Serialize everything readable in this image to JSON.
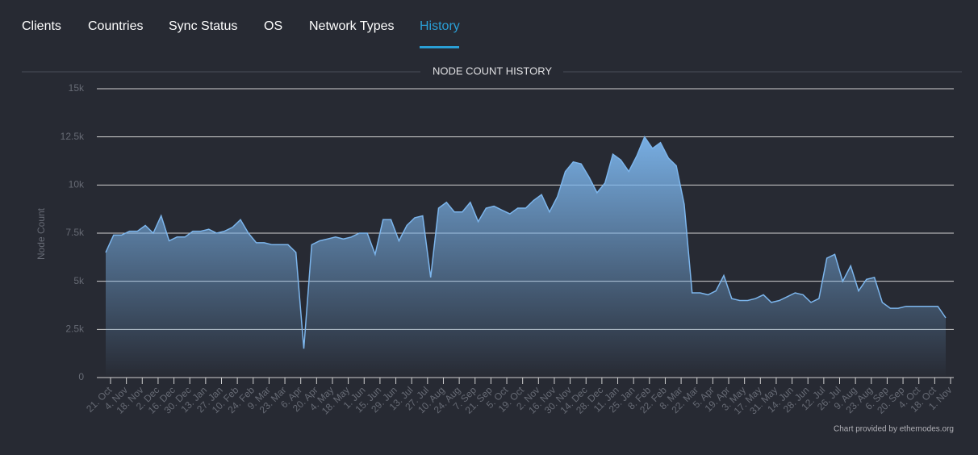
{
  "tabs": [
    "Clients",
    "Countries",
    "Sync Status",
    "OS",
    "Network Types",
    "History"
  ],
  "chart_data": {
    "type": "area",
    "title": "NODE COUNT HISTORY",
    "y_label": "Node Count",
    "credit": "Chart provided by ethernodes.org",
    "color": "#7cb5ec",
    "grid": true,
    "ylim": [
      0,
      15000
    ],
    "yticks": [
      0,
      {
        "value": 2500,
        "label": "2.5k"
      },
      {
        "value": 5000,
        "label": "5k"
      },
      {
        "value": 7500,
        "label": "7.5k"
      },
      {
        "value": 10000,
        "label": "10k"
      },
      {
        "value": 12500,
        "label": "12.5k"
      },
      {
        "value": 15000,
        "label": "15k"
      }
    ],
    "categories": [
      "21. Oct",
      null,
      "4. Nov",
      null,
      "18. Nov",
      null,
      "2. Dec",
      null,
      "16. Dec",
      null,
      "30. Dec",
      null,
      "13. Jan",
      null,
      "27. Jan",
      null,
      "10. Feb",
      null,
      "24. Feb",
      null,
      "9. Mar",
      null,
      "23. Mar",
      null,
      "6. Apr",
      null,
      "20. Apr",
      null,
      "4. May",
      null,
      "18. May",
      null,
      "1. Jun",
      null,
      "15. Jun",
      null,
      "29. Jun",
      null,
      "13. Jul",
      null,
      "27. Jul",
      null,
      "10. Aug",
      null,
      "24. Aug",
      null,
      "7. Sep",
      null,
      "21. Sep",
      null,
      "5. Oct",
      null,
      "19. Oct",
      null,
      "2. Nov",
      null,
      "16. Nov",
      null,
      "30. Nov",
      null,
      "14. Dec",
      null,
      "28. Dec",
      null,
      "11. Jan",
      null,
      "25. Jan",
      null,
      "8. Feb",
      null,
      "22. Feb",
      null,
      "8. Mar",
      null,
      "22. Mar",
      null,
      "5. Apr",
      null,
      "19. Apr",
      null,
      "3. May",
      null,
      "17. May",
      null,
      "31. May",
      null,
      "14. Jun",
      null,
      "28. Jun",
      null,
      "12. Jul",
      null,
      "26. Jul",
      null,
      "9. Aug",
      null,
      "23. Aug",
      null,
      "6. Sep",
      null,
      "20. Sep",
      null,
      "4. Oct",
      null,
      "18. Oct",
      null,
      "1. Nov"
    ],
    "values": [
      6500,
      7400,
      7400,
      7600,
      7600,
      7900,
      7500,
      8400,
      7100,
      7300,
      7300,
      7600,
      7600,
      7700,
      7500,
      7600,
      7800,
      8200,
      7500,
      7000,
      7000,
      6900,
      6900,
      6900,
      6500,
      1500,
      6900,
      7100,
      7200,
      7300,
      7200,
      7300,
      7500,
      7500,
      6400,
      8200,
      8200,
      7100,
      7900,
      8300,
      8400,
      5200,
      8800,
      9100,
      8600,
      8600,
      9100,
      8100,
      8800,
      8900,
      8700,
      8500,
      8800,
      8800,
      9200,
      9500,
      8600,
      9400,
      10700,
      11200,
      11100,
      10400,
      9600,
      10100,
      11600,
      11300,
      10700,
      11500,
      12500,
      11900,
      12200,
      11400,
      11000,
      9000,
      4400,
      4400,
      4300,
      4500,
      5300,
      4100,
      4000,
      4000,
      4100,
      4300,
      3900,
      4000,
      4200,
      4400,
      4300,
      3900,
      4100,
      6200,
      6400,
      5000,
      5800,
      4500,
      5100,
      5200,
      3900,
      3600,
      3600,
      3700,
      3700,
      3700,
      3700,
      3700,
      3100
    ]
  }
}
